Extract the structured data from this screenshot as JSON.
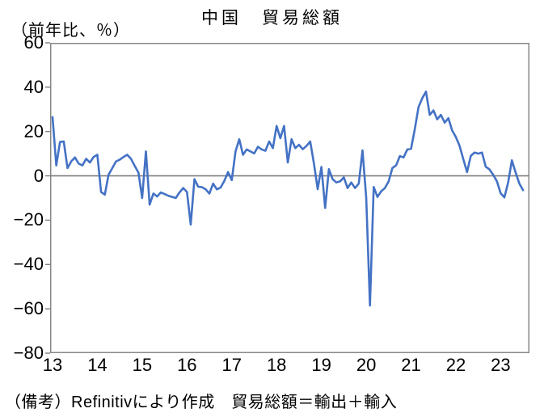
{
  "title": "中国　貿易総額",
  "unit_label": "（前年比、％）",
  "footnote": "（備考）Refinitivにより作成　貿易総額＝輸出＋輸入",
  "chart_data": {
    "type": "line",
    "title": "中国　貿易総額",
    "unit_label": "（前年比、％）",
    "x_start": "2013-01",
    "x_frequency": "monthly",
    "x_end": "2023-07",
    "x_tick_labels": [
      "13",
      "14",
      "15",
      "16",
      "17",
      "18",
      "19",
      "20",
      "21",
      "22",
      "23"
    ],
    "y_tick_labels": [
      "60",
      "40",
      "20",
      "0",
      "−20",
      "−40",
      "−60",
      "−80"
    ],
    "y_tick_values": [
      60,
      40,
      20,
      0,
      -20,
      -40,
      -60,
      -80
    ],
    "ylim": [
      -80,
      60
    ],
    "grid": "zero-line-only",
    "legend": "none",
    "line_color": "#4472C4",
    "axis_color": "#808080",
    "series": [
      {
        "name": "貿易総額（前年比、％）",
        "values": [
          26.5,
          4.7,
          15.3,
          15.5,
          3.5,
          6.5,
          8.3,
          5.5,
          4.7,
          7.7,
          6.0,
          8.5,
          9.5,
          -7.3,
          -8.5,
          0.5,
          3.5,
          6.5,
          7.3,
          8.5,
          9.5,
          7.7,
          4.5,
          1.5,
          -10.0,
          11.0,
          -13.0,
          -8.0,
          -9.3,
          -7.5,
          -8.2,
          -9.0,
          -9.5,
          -10.0,
          -7.5,
          -5.5,
          -7.3,
          -22.0,
          -1.5,
          -4.9,
          -5.1,
          -6.1,
          -8.0,
          -3.5,
          -6.1,
          -5.3,
          -2.3,
          1.7,
          -1.9,
          11.0,
          16.5,
          9.5,
          11.9,
          11.0,
          10.1,
          13.1,
          11.9,
          11.3,
          15.5,
          12.5,
          22.5,
          17.0,
          22.5,
          6.0,
          16.5,
          12.5,
          14.0,
          12.0,
          13.5,
          15.5,
          5.5,
          -6.0,
          4.0,
          -14.5,
          3.0,
          -1.5,
          -3.0,
          -2.5,
          -0.7,
          -5.5,
          -3.0,
          -5.5,
          -3.5,
          11.5,
          -10.0,
          -58.5,
          -5.0,
          -9.5,
          -7.0,
          -5.5,
          -2.5,
          3.5,
          4.7,
          8.9,
          8.3,
          11.9,
          12.2,
          21.0,
          31.0,
          35.0,
          38.0,
          27.5,
          29.5,
          25.5,
          27.5,
          24.0,
          26.0,
          20.5,
          17.5,
          13.5,
          7.5,
          1.7,
          9.0,
          10.5,
          10.0,
          10.5,
          4.1,
          2.9,
          0.5,
          -2.5,
          -7.9,
          -9.7,
          -3.0,
          7.0,
          1.5,
          -3.5,
          -6.5
        ]
      }
    ]
  }
}
